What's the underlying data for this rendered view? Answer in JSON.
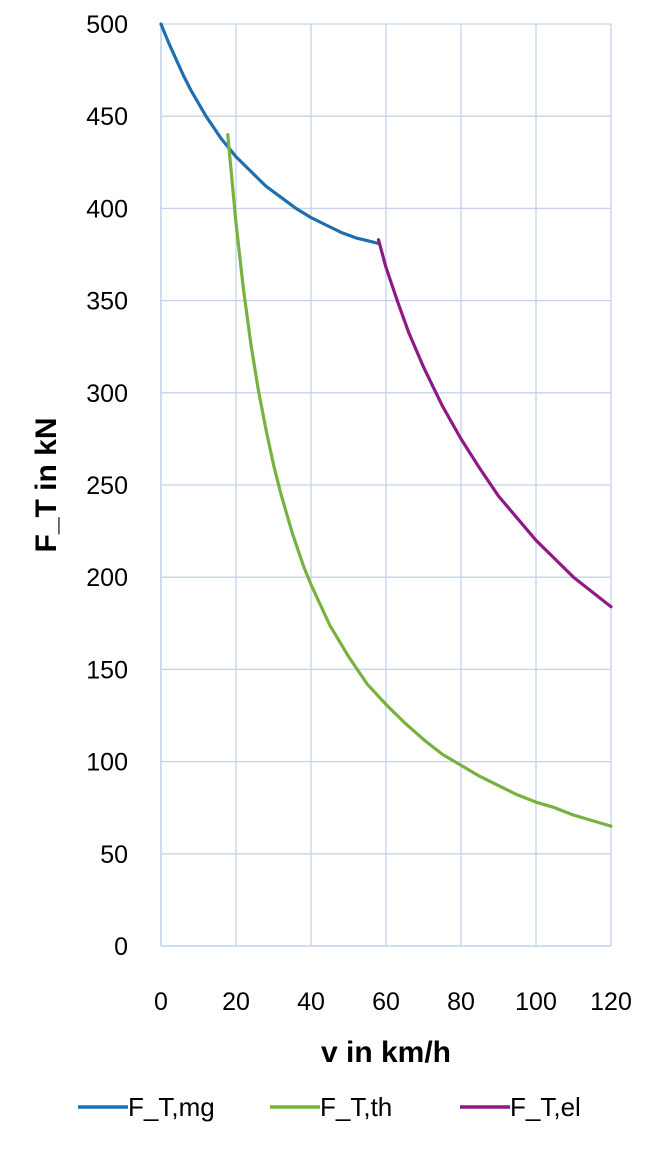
{
  "chart_data": {
    "type": "line",
    "title": "",
    "xlabel": "v in km/h",
    "ylabel": "F_T in kN",
    "xlim": [
      0,
      120
    ],
    "ylim": [
      0,
      500
    ],
    "x_ticks": [
      0,
      20,
      40,
      60,
      80,
      100,
      120
    ],
    "y_ticks": [
      0,
      50,
      100,
      150,
      200,
      250,
      300,
      350,
      400,
      450,
      500
    ],
    "grid": true,
    "legend_position": "bottom",
    "series": [
      {
        "name": "F_T,mg",
        "color": "#1f6fb0",
        "points": [
          [
            0,
            500
          ],
          [
            2,
            490
          ],
          [
            4,
            481
          ],
          [
            6,
            472
          ],
          [
            8,
            464
          ],
          [
            10,
            457
          ],
          [
            12,
            450
          ],
          [
            14,
            444
          ],
          [
            16,
            438
          ],
          [
            18,
            433
          ],
          [
            20,
            428
          ],
          [
            24,
            420
          ],
          [
            28,
            412
          ],
          [
            32,
            406
          ],
          [
            36,
            400
          ],
          [
            40,
            395
          ],
          [
            44,
            391
          ],
          [
            48,
            387
          ],
          [
            52,
            384
          ],
          [
            56,
            382
          ],
          [
            58,
            381
          ]
        ]
      },
      {
        "name": "F_T,th",
        "color": "#77b240",
        "points": [
          [
            17.8,
            440
          ],
          [
            20,
            392
          ],
          [
            22,
            356
          ],
          [
            24,
            326
          ],
          [
            26,
            301
          ],
          [
            28,
            280
          ],
          [
            30,
            261
          ],
          [
            32,
            245
          ],
          [
            35,
            224
          ],
          [
            38,
            206
          ],
          [
            40,
            196
          ],
          [
            45,
            174
          ],
          [
            50,
            157
          ],
          [
            55,
            142
          ],
          [
            60,
            131
          ],
          [
            65,
            121
          ],
          [
            70,
            112
          ],
          [
            75,
            104
          ],
          [
            80,
            98
          ],
          [
            85,
            92
          ],
          [
            90,
            87
          ],
          [
            95,
            82
          ],
          [
            100,
            78
          ],
          [
            105,
            75
          ],
          [
            110,
            71
          ],
          [
            115,
            68
          ],
          [
            120,
            65
          ]
        ]
      },
      {
        "name": "F_T,el",
        "color": "#8e1a86",
        "points": [
          [
            58,
            383
          ],
          [
            60,
            368
          ],
          [
            63,
            350
          ],
          [
            66,
            333
          ],
          [
            70,
            314
          ],
          [
            75,
            293
          ],
          [
            80,
            275
          ],
          [
            85,
            259
          ],
          [
            90,
            244
          ],
          [
            95,
            232
          ],
          [
            100,
            220
          ],
          [
            105,
            210
          ],
          [
            110,
            200
          ],
          [
            115,
            192
          ],
          [
            120,
            184
          ]
        ]
      }
    ]
  }
}
